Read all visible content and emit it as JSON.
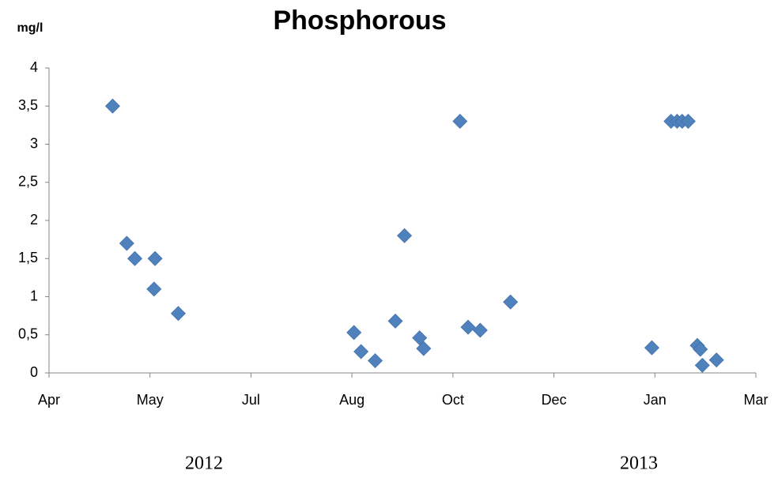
{
  "chart_data": {
    "type": "scatter",
    "title": "Phosphorous",
    "y_label": "mg/l",
    "annotations": [
      "2012",
      "2013"
    ],
    "color": "#4f81bd",
    "x": [
      0.63,
      0.77,
      0.85,
      1.05,
      1.04,
      1.28,
      3.02,
      3.09,
      3.23,
      3.43,
      3.52,
      3.67,
      3.71,
      4.07,
      4.15,
      4.27,
      4.57,
      5.97,
      6.16,
      6.22,
      6.27,
      6.33,
      6.42,
      6.45,
      6.47,
      6.61
    ],
    "values": [
      3.5,
      1.7,
      1.5,
      1.5,
      1.1,
      0.78,
      0.53,
      0.28,
      0.16,
      0.68,
      1.8,
      0.46,
      0.32,
      3.3,
      0.6,
      0.56,
      0.93,
      0.33,
      3.3,
      3.3,
      3.3,
      3.3,
      0.36,
      0.31,
      0.1,
      0.17
    ],
    "xlim": [
      0,
      7
    ],
    "xticks": [
      {
        "value": 0,
        "label": "Apr"
      },
      {
        "value": 1,
        "label": "May"
      },
      {
        "value": 2,
        "label": "Jul"
      },
      {
        "value": 3,
        "label": "Aug"
      },
      {
        "value": 4,
        "label": "Oct"
      },
      {
        "value": 5,
        "label": "Dec"
      },
      {
        "value": 6,
        "label": "Jan"
      },
      {
        "value": 7,
        "label": "Mar"
      }
    ],
    "ylim": [
      0,
      4
    ],
    "yticks": [
      0,
      {
        "value": 0.5,
        "label": "0,5"
      },
      1,
      {
        "value": 1.5,
        "label": "1,5"
      },
      2,
      {
        "value": 2.5,
        "label": "2,5"
      },
      3,
      {
        "value": 3.5,
        "label": "3,5"
      },
      4
    ]
  }
}
